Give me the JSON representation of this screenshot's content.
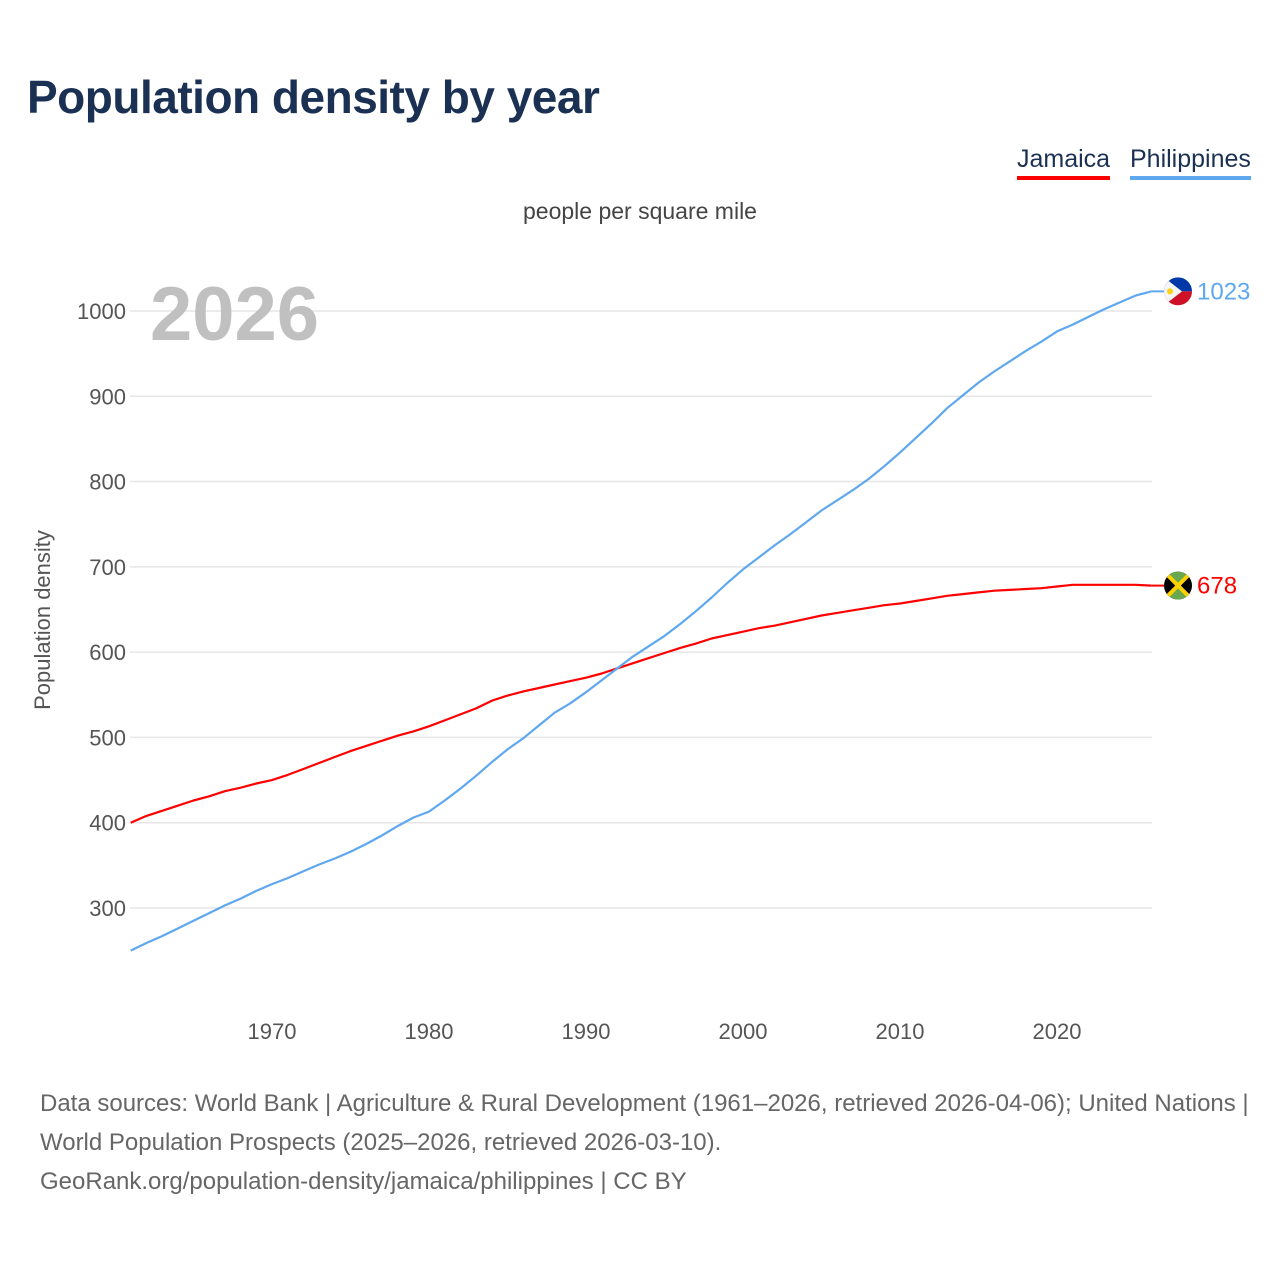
{
  "title": "Population density by year",
  "subtitle": "people per square mile",
  "year_label": "2026",
  "sources": {
    "line1": "Data sources: World Bank | Agriculture & Rural Development (1961–2026, retrieved 2026-04-06); United Nations | World Population Prospects (2025–2026, retrieved 2026-03-10).",
    "line2": "GeoRank.org/population-density/jamaica/philippines | CC BY"
  },
  "chart_data": {
    "type": "line",
    "title": "Population density by year",
    "subtitle": "people per square mile",
    "xlabel": "",
    "ylabel": "Population density",
    "xlim": [
      1961,
      2026
    ],
    "ylim": [
      200,
      1050
    ],
    "x_ticks": [
      "1970",
      "1980",
      "1990",
      "2000",
      "2010",
      "2020"
    ],
    "y_ticks": [
      "300",
      "400",
      "500",
      "600",
      "700",
      "800",
      "900",
      "1000"
    ],
    "grid": true,
    "legend_position": "top-right",
    "x_start": 1961,
    "series": [
      {
        "name": "Jamaica",
        "color": "#ff0000",
        "end_label": "678",
        "flag": "jamaica-flag",
        "values": [
          400,
          408,
          414,
          420,
          426,
          431,
          437,
          441,
          446,
          450,
          456,
          463,
          470,
          477,
          484,
          490,
          496,
          502,
          507,
          513,
          520,
          527,
          534,
          543,
          549,
          554,
          558,
          562,
          566,
          570,
          575,
          581,
          587,
          593,
          599,
          605,
          610,
          616,
          620,
          624,
          628,
          631,
          635,
          639,
          643,
          646,
          649,
          652,
          655,
          657,
          660,
          663,
          666,
          668,
          670,
          672,
          673,
          674,
          675,
          677,
          679,
          679,
          679,
          679,
          679,
          678
        ]
      },
      {
        "name": "Philippines",
        "color": "#5fa8ef",
        "end_label": "1023",
        "flag": "philippines-flag",
        "values": [
          250,
          259,
          267,
          276,
          285,
          294,
          303,
          311,
          320,
          328,
          335,
          343,
          351,
          358,
          366,
          375,
          385,
          396,
          406,
          413,
          426,
          440,
          455,
          471,
          486,
          499,
          514,
          529,
          540,
          553,
          567,
          581,
          595,
          607,
          619,
          633,
          648,
          664,
          681,
          697,
          711,
          725,
          738,
          752,
          766,
          778,
          790,
          803,
          818,
          834,
          851,
          868,
          886,
          901,
          916,
          929,
          941,
          953,
          964,
          976,
          984,
          993,
          1002,
          1010,
          1018,
          1023
        ]
      }
    ]
  }
}
